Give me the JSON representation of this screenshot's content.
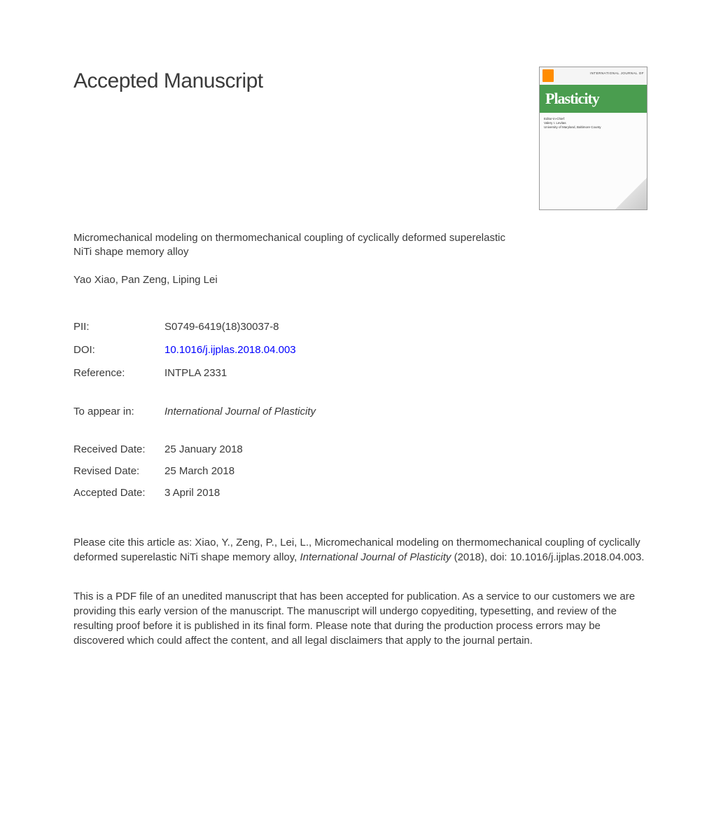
{
  "mainTitle": "Accepted Manuscript",
  "articleTitle": "Micromechanical modeling on thermomechanical coupling of cyclically deformed superelastic NiTi shape memory alloy",
  "authors": "Yao Xiao, Pan Zeng, Liping Lei",
  "metadata": {
    "piiLabel": "PII:",
    "piiValue": "S0749-6419(18)30037-8",
    "doiLabel": "DOI:",
    "doiValue": "10.1016/j.ijplas.2018.04.003",
    "referenceLabel": "Reference:",
    "referenceValue": "INTPLA 2331",
    "appearLabel": "To appear in:",
    "appearValue": "International Journal of Plasticity"
  },
  "dates": {
    "receivedLabel": "Received Date:",
    "receivedValue": "25 January 2018",
    "revisedLabel": "Revised Date:",
    "revisedValue": "25 March 2018",
    "acceptedLabel": "Accepted Date:",
    "acceptedValue": "3 April 2018"
  },
  "citation": {
    "prefix": "Please cite this article as: Xiao, Y., Zeng, P., Lei, L., Micromechanical modeling on thermomechanical coupling of cyclically deformed superelastic NiTi shape memory alloy, ",
    "journal": "International Journal of Plasticity",
    "suffix": " (2018), doi: 10.1016/j.ijplas.2018.04.003."
  },
  "disclaimer": "This is a PDF file of an unedited manuscript that has been accepted for publication. As a service to our customers we are providing this early version of the manuscript. The manuscript will undergo copyediting, typesetting, and review of the resulting proof before it is published in its final form. Please note that during the production process errors may be discovered which could affect the content, and all legal disclaimers that apply to the journal pertain.",
  "cover": {
    "journalLabel": "INTERNATIONAL JOURNAL OF",
    "titleText": "Plasticity",
    "editorLine1": "Editor-in-Chief:",
    "editorLine2": "Valery I. Levitas",
    "editorLine3": "University of Maryland, Baltimore County"
  },
  "colors": {
    "text": "#3a3a3a",
    "link": "#0000ff",
    "coverGreen": "#4a9d4f",
    "coverWhite": "#ffffff",
    "publisherOrange": "#ff8c00"
  }
}
